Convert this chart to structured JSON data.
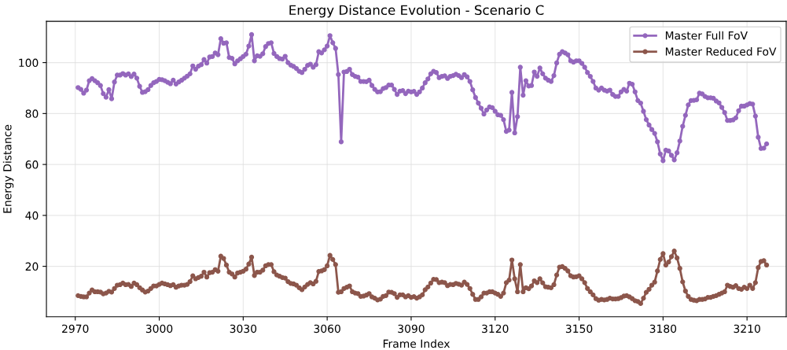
{
  "chart_data": {
    "type": "line",
    "title": "Energy Distance Evolution - Scenario C",
    "xlabel": "Frame Index",
    "ylabel": "Energy Distance",
    "x": [
      2971,
      2972,
      2973,
      2974,
      2975,
      2976,
      2977,
      2978,
      2979,
      2980,
      2981,
      2982,
      2983,
      2984,
      2985,
      2986,
      2987,
      2988,
      2989,
      2990,
      2991,
      2992,
      2993,
      2994,
      2995,
      2996,
      2997,
      2998,
      2999,
      3000,
      3001,
      3002,
      3003,
      3004,
      3005,
      3006,
      3007,
      3008,
      3009,
      3010,
      3011,
      3012,
      3013,
      3014,
      3015,
      3016,
      3017,
      3018,
      3019,
      3020,
      3021,
      3022,
      3023,
      3024,
      3025,
      3026,
      3027,
      3028,
      3029,
      3030,
      3031,
      3032,
      3033,
      3034,
      3035,
      3036,
      3037,
      3038,
      3039,
      3040,
      3041,
      3042,
      3043,
      3044,
      3045,
      3046,
      3047,
      3048,
      3049,
      3050,
      3051,
      3052,
      3053,
      3054,
      3055,
      3056,
      3057,
      3058,
      3059,
      3060,
      3061,
      3062,
      3063,
      3064,
      3065,
      3066,
      3067,
      3068,
      3069,
      3070,
      3071,
      3072,
      3073,
      3074,
      3075,
      3076,
      3077,
      3078,
      3079,
      3080,
      3081,
      3082,
      3083,
      3084,
      3085,
      3086,
      3087,
      3088,
      3089,
      3090,
      3091,
      3092,
      3093,
      3094,
      3095,
      3096,
      3097,
      3098,
      3099,
      3100,
      3101,
      3102,
      3103,
      3104,
      3105,
      3106,
      3107,
      3108,
      3109,
      3110,
      3111,
      3112,
      3113,
      3114,
      3115,
      3116,
      3117,
      3118,
      3119,
      3120,
      3121,
      3122,
      3123,
      3124,
      3125,
      3126,
      3127,
      3128,
      3129,
      3130,
      3131,
      3132,
      3133,
      3134,
      3135,
      3136,
      3137,
      3138,
      3139,
      3140,
      3141,
      3142,
      3143,
      3144,
      3145,
      3146,
      3147,
      3148,
      3149,
      3150,
      3151,
      3152,
      3153,
      3154,
      3155,
      3156,
      3157,
      3158,
      3159,
      3160,
      3161,
      3162,
      3163,
      3164,
      3165,
      3166,
      3167,
      3168,
      3169,
      3170,
      3171,
      3172,
      3173,
      3174,
      3175,
      3176,
      3177,
      3178,
      3179,
      3180,
      3181,
      3182,
      3183,
      3184,
      3185,
      3186,
      3187,
      3188,
      3189,
      3190,
      3191,
      3192,
      3193,
      3194,
      3195,
      3196,
      3197,
      3198,
      3199,
      3200,
      3201,
      3202,
      3203,
      3204,
      3205,
      3206,
      3207,
      3208,
      3209,
      3210,
      3211,
      3212,
      3213,
      3214,
      3215,
      3216,
      3217
    ],
    "series": [
      {
        "name": "Master Full FoV",
        "color": "#9467bd",
        "values": [
          90.2,
          89.5,
          88.0,
          89.2,
          92.9,
          93.7,
          92.9,
          92.1,
          91.0,
          87.8,
          86.4,
          89.4,
          85.8,
          92.4,
          95.1,
          95.1,
          95.7,
          95.1,
          95.6,
          94.5,
          95.5,
          93.9,
          90.7,
          88.3,
          88.6,
          89.4,
          91.0,
          92.1,
          92.6,
          93.4,
          93.3,
          92.9,
          92.3,
          91.7,
          93.1,
          91.6,
          92.4,
          93.1,
          93.9,
          94.7,
          95.6,
          98.7,
          97.4,
          98.6,
          99.2,
          101.2,
          99.8,
          102.2,
          102.4,
          103.8,
          103.1,
          109.4,
          107.6,
          107.8,
          102.0,
          101.7,
          99.5,
          100.7,
          101.5,
          102.4,
          103.3,
          106.5,
          111.0,
          100.7,
          102.7,
          102.5,
          103.5,
          106.3,
          107.5,
          107.8,
          103.6,
          102.4,
          101.6,
          101.4,
          102.5,
          100.0,
          99.0,
          98.5,
          97.7,
          96.6,
          96.1,
          97.4,
          98.9,
          99.4,
          98.2,
          99.2,
          104.3,
          103.8,
          105.0,
          106.5,
          110.6,
          107.8,
          105.6,
          95.3,
          68.9,
          96.3,
          96.5,
          97.4,
          95.3,
          94.6,
          94.3,
          92.6,
          92.6,
          92.5,
          93.1,
          91.0,
          89.5,
          88.5,
          88.6,
          89.8,
          90.2,
          91.2,
          91.2,
          89.5,
          87.5,
          88.8,
          89.0,
          87.8,
          88.8,
          88.5,
          88.7,
          87.5,
          88.5,
          90.0,
          92.1,
          93.6,
          95.6,
          96.6,
          96.1,
          94.1,
          94.6,
          94.8,
          93.8,
          94.6,
          94.9,
          95.4,
          94.9,
          94.1,
          95.3,
          94.4,
          92.6,
          89.3,
          86.3,
          84.1,
          82.1,
          79.8,
          81.4,
          82.6,
          82.3,
          80.9,
          79.5,
          79.3,
          77.6,
          73.0,
          73.5,
          88.3,
          72.4,
          78.8,
          98.2,
          87.2,
          92.9,
          90.8,
          91.0,
          96.3,
          94.6,
          97.9,
          95.6,
          93.9,
          93.1,
          92.6,
          94.9,
          99.9,
          103.3,
          104.3,
          103.8,
          103.1,
          100.7,
          100.2,
          100.7,
          100.7,
          99.7,
          98.2,
          96.1,
          94.6,
          92.6,
          90.0,
          89.2,
          90.0,
          89.2,
          88.8,
          89.2,
          87.5,
          86.7,
          86.7,
          88.5,
          89.5,
          88.8,
          91.9,
          91.5,
          88.5,
          85.1,
          84.1,
          80.9,
          77.6,
          75.5,
          73.7,
          72.2,
          68.9,
          64.1,
          61.5,
          65.6,
          65.3,
          63.6,
          61.8,
          64.6,
          69.2,
          75.0,
          79.3,
          83.4,
          85.1,
          85.2,
          85.4,
          88.0,
          87.7,
          86.7,
          86.2,
          86.2,
          86.0,
          84.9,
          84.2,
          82.4,
          80.4,
          77.3,
          77.3,
          77.5,
          78.3,
          81.1,
          82.9,
          82.9,
          83.4,
          83.9,
          83.7,
          79.0,
          70.7,
          66.3,
          66.4,
          68.1
        ]
      },
      {
        "name": "Master Reduced FoV",
        "color": "#8c564b",
        "values": [
          8.5,
          8.2,
          8.0,
          8.0,
          9.5,
          10.7,
          10.0,
          10.0,
          9.9,
          9.2,
          9.5,
          10.2,
          9.9,
          11.3,
          12.6,
          12.8,
          13.4,
          12.8,
          12.9,
          12.1,
          13.4,
          12.8,
          11.6,
          10.7,
          9.9,
          10.3,
          11.3,
          12.3,
          12.3,
          12.9,
          13.4,
          13.1,
          12.8,
          12.4,
          12.8,
          11.8,
          12.3,
          12.6,
          12.6,
          12.9,
          14.0,
          16.3,
          15.1,
          15.6,
          16.1,
          17.7,
          15.8,
          17.5,
          17.7,
          18.7,
          18.1,
          24.0,
          23.1,
          20.5,
          17.7,
          17.0,
          15.8,
          17.4,
          17.7,
          18.1,
          18.9,
          20.9,
          23.6,
          16.4,
          17.7,
          17.7,
          18.5,
          20.2,
          20.7,
          20.7,
          17.9,
          16.6,
          16.1,
          15.6,
          15.4,
          14.0,
          13.3,
          13.1,
          12.6,
          11.6,
          10.8,
          11.9,
          12.9,
          13.6,
          13.1,
          14.1,
          18.0,
          18.2,
          18.7,
          20.2,
          24.3,
          22.7,
          20.7,
          9.8,
          10.0,
          11.3,
          11.8,
          12.3,
          10.0,
          9.5,
          9.3,
          8.2,
          8.3,
          8.7,
          9.3,
          8.0,
          7.5,
          6.8,
          7.1,
          8.2,
          8.5,
          9.9,
          9.8,
          9.3,
          7.8,
          8.8,
          8.8,
          8.0,
          8.5,
          7.8,
          8.1,
          7.5,
          8.0,
          8.8,
          10.8,
          11.9,
          13.4,
          14.9,
          14.8,
          13.6,
          13.8,
          13.6,
          12.4,
          12.9,
          12.8,
          13.3,
          13.0,
          12.6,
          13.8,
          12.9,
          11.3,
          9.0,
          7.0,
          7.0,
          8.0,
          9.5,
          9.5,
          10.0,
          10.0,
          9.5,
          9.0,
          8.2,
          9.5,
          13.6,
          14.6,
          22.5,
          15.1,
          10.0,
          20.7,
          10.0,
          11.6,
          11.2,
          12.3,
          14.3,
          13.6,
          15.1,
          13.5,
          12.0,
          11.8,
          11.6,
          12.8,
          16.6,
          19.7,
          19.9,
          19.2,
          18.2,
          16.3,
          15.8,
          15.9,
          16.3,
          15.1,
          13.6,
          11.3,
          10.0,
          8.8,
          7.3,
          6.7,
          7.0,
          6.8,
          7.0,
          7.5,
          7.2,
          7.2,
          7.3,
          7.7,
          8.3,
          8.5,
          8.0,
          7.3,
          6.5,
          6.2,
          5.4,
          7.5,
          9.8,
          11.0,
          12.6,
          13.8,
          18.2,
          22.7,
          25.0,
          20.5,
          21.7,
          23.8,
          26.0,
          23.3,
          19.2,
          13.9,
          10.3,
          8.2,
          7.0,
          6.7,
          6.5,
          7.0,
          7.0,
          7.2,
          7.8,
          7.8,
          8.2,
          8.5,
          9.0,
          9.5,
          10.0,
          12.6,
          12.1,
          11.8,
          12.4,
          11.3,
          11.0,
          11.8,
          11.3,
          12.6,
          11.3,
          13.6,
          19.5,
          21.9,
          22.2,
          20.5
        ]
      }
    ],
    "xlim": [
      2959.7,
      3224
    ],
    "ylim": [
      0.2,
      116.2
    ],
    "xticks": [
      2970,
      3000,
      3030,
      3060,
      3090,
      3120,
      3150,
      3180,
      3210
    ],
    "yticks": [
      20,
      40,
      60,
      80,
      100
    ],
    "grid": true,
    "legend": "top right",
    "marker": "circle",
    "line_style": "solid"
  }
}
